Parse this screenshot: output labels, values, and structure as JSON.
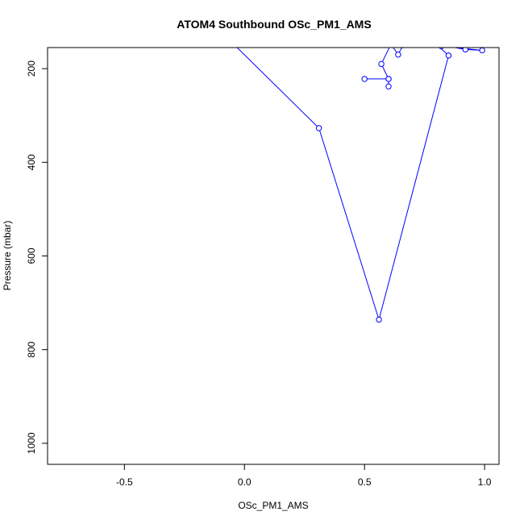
{
  "chart_data": {
    "type": "line",
    "title": "ATOM4 Southbound OSc_PM1_AMS",
    "xlabel": "OSc_PM1_AMS",
    "ylabel": "Pressure (mbar)",
    "xlim": [
      -0.82,
      1.06
    ],
    "ylim": [
      1045,
      155
    ],
    "y_reversed": true,
    "x_ticks": [
      -0.5,
      0.0,
      0.5,
      1.0
    ],
    "x_tick_labels": [
      "-0.5",
      "0.0",
      "0.5",
      "1.0"
    ],
    "y_ticks": [
      200,
      400,
      600,
      800,
      1000
    ],
    "y_tick_labels": [
      "200",
      "400",
      "600",
      "800",
      "1000"
    ],
    "grid": false,
    "series": [
      {
        "color": "#0000ff",
        "marker": "open-circle",
        "points": [
          {
            "x": -0.1,
            "y": 120
          },
          {
            "x": 0.31,
            "y": 327
          },
          {
            "x": 0.56,
            "y": 736
          },
          {
            "x": 0.85,
            "y": 172
          },
          {
            "x": 0.8,
            "y": 148
          },
          {
            "x": 0.92,
            "y": 159
          },
          {
            "x": 0.99,
            "y": 161
          },
          {
            "x": 0.82,
            "y": 152
          },
          {
            "x": 0.66,
            "y": 150
          },
          {
            "x": 0.64,
            "y": 170
          },
          {
            "x": 0.61,
            "y": 148
          },
          {
            "x": 0.57,
            "y": 190
          },
          {
            "x": 0.6,
            "y": 222
          },
          {
            "x": 0.5,
            "y": 222
          },
          {
            "x": 0.6,
            "y": 222
          },
          {
            "x": 0.6,
            "y": 238
          }
        ]
      }
    ]
  }
}
